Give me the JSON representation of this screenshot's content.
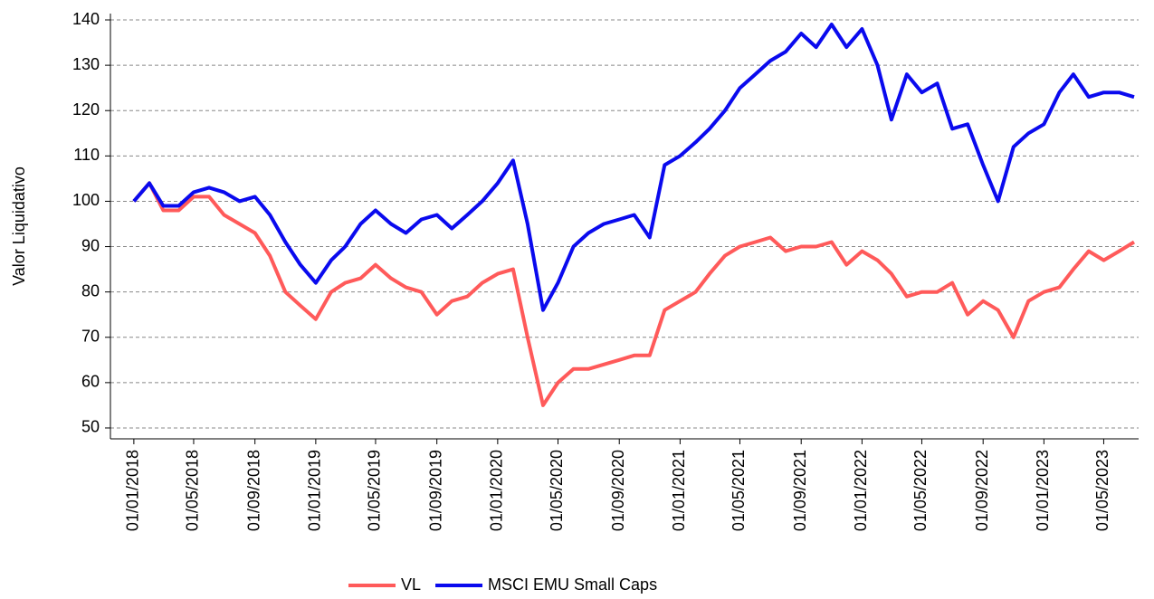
{
  "chart_data": {
    "type": "line",
    "y_label": "Valor Liquidativo",
    "x": [
      "01/01/2018",
      "01/02/2018",
      "01/03/2018",
      "01/04/2018",
      "01/05/2018",
      "01/06/2018",
      "01/07/2018",
      "01/08/2018",
      "01/09/2018",
      "01/10/2018",
      "01/11/2018",
      "01/12/2018",
      "01/01/2019",
      "01/02/2019",
      "01/03/2019",
      "01/04/2019",
      "01/05/2019",
      "01/06/2019",
      "01/07/2019",
      "01/08/2019",
      "01/09/2019",
      "01/10/2019",
      "01/11/2019",
      "01/12/2019",
      "01/01/2020",
      "01/02/2020",
      "01/03/2020",
      "01/04/2020",
      "01/05/2020",
      "01/06/2020",
      "01/07/2020",
      "01/08/2020",
      "01/09/2020",
      "01/10/2020",
      "01/11/2020",
      "01/12/2020",
      "01/01/2021",
      "01/02/2021",
      "01/03/2021",
      "01/04/2021",
      "01/05/2021",
      "01/06/2021",
      "01/07/2021",
      "01/08/2021",
      "01/09/2021",
      "01/10/2021",
      "01/11/2021",
      "01/12/2021",
      "01/01/2022",
      "01/02/2022",
      "01/03/2022",
      "01/04/2022",
      "01/05/2022",
      "01/06/2022",
      "01/07/2022",
      "01/08/2022",
      "01/09/2022",
      "01/10/2022",
      "01/11/2022",
      "01/12/2022",
      "01/01/2023",
      "01/02/2023",
      "01/03/2023",
      "01/04/2023",
      "01/05/2023",
      "01/06/2023",
      "01/07/2023"
    ],
    "series": [
      {
        "name": "VL",
        "color": "#ff5a5a",
        "values": [
          100,
          104,
          98,
          98,
          101,
          101,
          97,
          95,
          93,
          88,
          80,
          77,
          74,
          80,
          82,
          83,
          86,
          83,
          81,
          80,
          75,
          78,
          79,
          82,
          84,
          85,
          70,
          55,
          60,
          63,
          63,
          64,
          65,
          66,
          66,
          76,
          78,
          80,
          84,
          88,
          90,
          91,
          92,
          89,
          90,
          90,
          91,
          86,
          89,
          87,
          84,
          79,
          80,
          80,
          82,
          75,
          78,
          76,
          70,
          78,
          80,
          81,
          85,
          89,
          87,
          89,
          91
        ]
      },
      {
        "name": "MSCI EMU Small Caps",
        "color": "#0a0aee",
        "values": [
          100,
          104,
          99,
          99,
          102,
          103,
          102,
          100,
          101,
          97,
          91,
          86,
          82,
          87,
          90,
          95,
          98,
          95,
          93,
          96,
          97,
          94,
          97,
          100,
          104,
          109,
          95,
          76,
          82,
          90,
          93,
          95,
          96,
          97,
          92,
          108,
          110,
          113,
          116,
          120,
          125,
          128,
          131,
          133,
          137,
          134,
          139,
          134,
          138,
          130,
          118,
          128,
          124,
          126,
          116,
          117,
          108,
          100,
          112,
          115,
          117,
          124,
          128,
          123,
          124,
          124,
          123
        ]
      }
    ],
    "xlim": [
      "15/11/2017",
      "10/07/2023"
    ],
    "xticks": [
      "01/01/2018",
      "01/05/2018",
      "01/09/2018",
      "01/01/2019",
      "01/05/2019",
      "01/09/2019",
      "01/01/2020",
      "01/05/2020",
      "01/09/2020",
      "01/01/2021",
      "01/05/2021",
      "01/09/2021",
      "01/01/2022",
      "01/05/2022",
      "01/09/2022",
      "01/01/2023",
      "01/05/2023"
    ],
    "ylim": [
      47.6,
      141.4
    ],
    "yticks": [
      50,
      60,
      70,
      80,
      90,
      100,
      110,
      120,
      130,
      140
    ],
    "grid": true,
    "legend": "bottom"
  }
}
